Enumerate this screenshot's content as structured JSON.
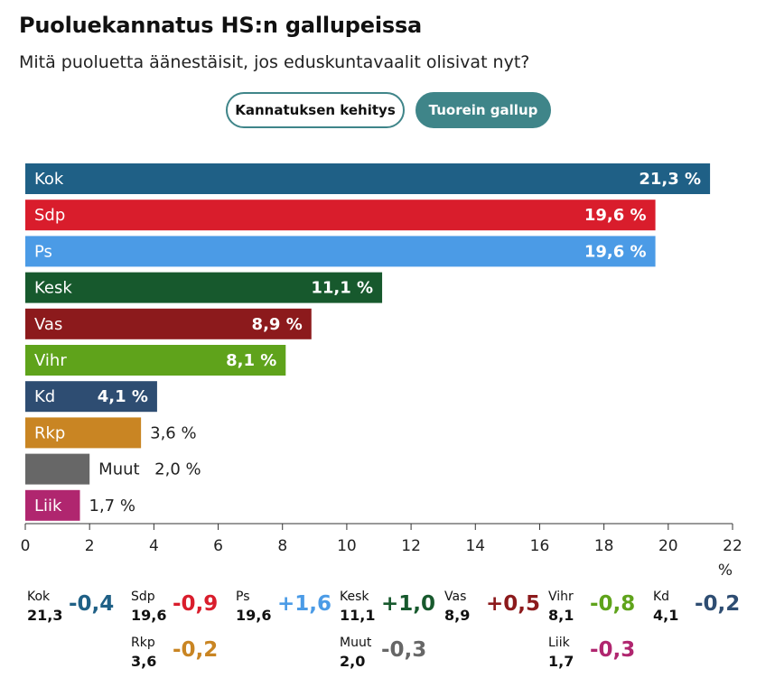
{
  "header": {
    "title": "Puoluekannatus HS:n gallupeissa",
    "subtitle": "Mitä puoluetta äänestäisit, jos eduskuntavaalit olisivat nyt?"
  },
  "toggles": {
    "evolution_label": "Kannatuksen kehitys",
    "latest_label": "Tuorein gallup"
  },
  "chart_data": {
    "type": "bar",
    "orientation": "horizontal",
    "title": "Puoluekannatus HS:n gallupeissa",
    "xlabel": "%",
    "xlim": [
      0,
      22
    ],
    "xticks": [
      0,
      2,
      4,
      6,
      8,
      10,
      12,
      14,
      16,
      18,
      20,
      22
    ],
    "categories": [
      "Kok",
      "Sdp",
      "Ps",
      "Kesk",
      "Vas",
      "Vihr",
      "Kd",
      "Rkp",
      "Muut",
      "Liik"
    ],
    "values": [
      21.3,
      19.6,
      19.6,
      11.1,
      8.9,
      8.1,
      4.1,
      3.6,
      2.0,
      1.7
    ],
    "value_labels": [
      "21,3 %",
      "19,6 %",
      "19,6 %",
      "11,1 %",
      "8,9 %",
      "8,1 %",
      "4,1 %",
      "3,6 %",
      "2,0 %",
      "1,7 %"
    ],
    "colors": [
      "#1f6086",
      "#d91d2c",
      "#4b9be6",
      "#17592d",
      "#8c1a1c",
      "#5fa31b",
      "#2e4d72",
      "#c98523",
      "#676767",
      "#b0266f"
    ]
  },
  "changes": [
    {
      "party": "Kok",
      "value": "21,3",
      "delta": "-0,4",
      "color": "#1f6086"
    },
    {
      "party": "Sdp",
      "value": "19,6",
      "delta": "-0,9",
      "color": "#d91d2c"
    },
    {
      "party": "Ps",
      "value": "19,6",
      "delta": "+1,6",
      "color": "#4b9be6"
    },
    {
      "party": "Kesk",
      "value": "11,1",
      "delta": "+1,0",
      "color": "#17592d"
    },
    {
      "party": "Vas",
      "value": "8,9",
      "delta": "+0,5",
      "color": "#8c1a1c"
    },
    {
      "party": "Vihr",
      "value": "8,1",
      "delta": "-0,8",
      "color": "#5fa31b"
    },
    {
      "party": "Kd",
      "value": "4,1",
      "delta": "-0,2",
      "color": "#2e4d72"
    },
    {
      "party": "Rkp",
      "value": "3,6",
      "delta": "-0,2",
      "color": "#c98523"
    },
    {
      "party": "Muut",
      "value": "2,0",
      "delta": "-0,3",
      "color": "#676767"
    },
    {
      "party": "Liik",
      "value": "1,7",
      "delta": "-0,3",
      "color": "#b0266f"
    }
  ]
}
